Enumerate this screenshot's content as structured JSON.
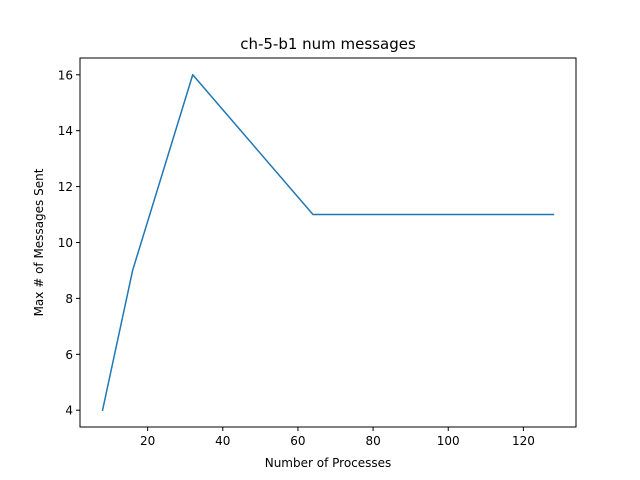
{
  "chart_data": {
    "type": "line",
    "title": "ch-5-b1 num messages",
    "xlabel": "Number of Processes",
    "ylabel": "Max # of Messages Sent",
    "xlim": [
      2,
      134
    ],
    "ylim": [
      3.4,
      16.6
    ],
    "xticks": [
      20,
      40,
      60,
      80,
      100,
      120
    ],
    "yticks": [
      4,
      6,
      8,
      10,
      12,
      14,
      16
    ],
    "grid": false,
    "series": [
      {
        "x": [
          8,
          16,
          32,
          64,
          128
        ],
        "values": [
          4,
          9,
          16,
          11,
          11
        ],
        "color": "#1f77b4"
      }
    ]
  }
}
